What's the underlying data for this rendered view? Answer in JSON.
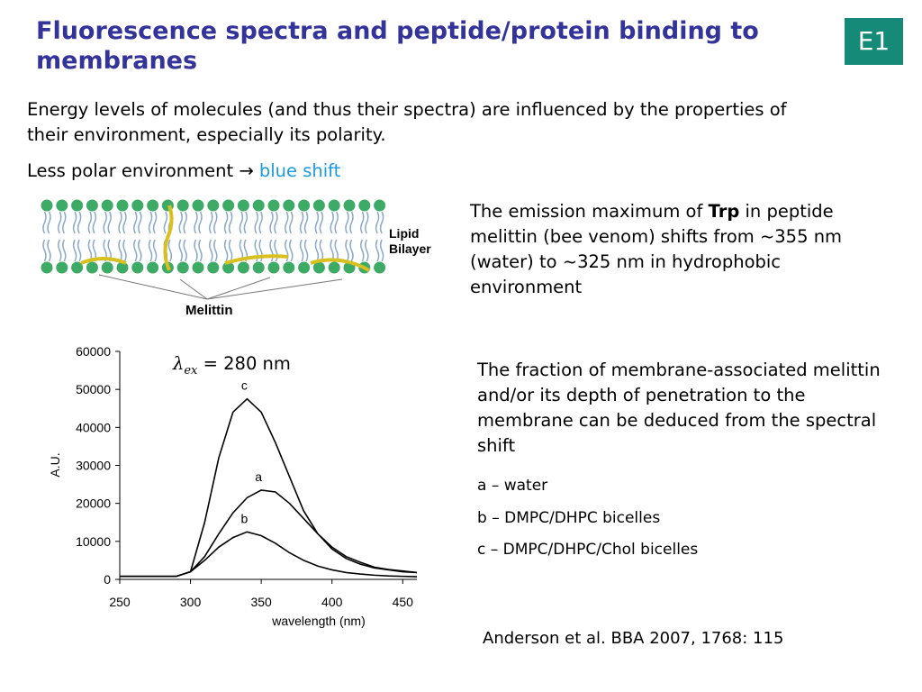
{
  "header": {
    "title": "Fluorescence spectra and peptide/protein binding to membranes",
    "badge": "E1"
  },
  "intro": {
    "paragraph": "Energy levels of molecules (and thus their spectra) are influenced by the properties of their environment, especially its polarity.",
    "shift": {
      "text": "Less polar environment",
      "arrow": "→",
      "highlight": "blue shift"
    }
  },
  "figure": {
    "bilayer_label": "Lipid Bilayer",
    "peptide_label": "Melittin"
  },
  "notes": {
    "emission": {
      "before": "The emission maximum of ",
      "bold": "Trp",
      "after": " in peptide melittin (bee venom) shifts from ~355 nm (water) to ~325 nm in hydrophobic environment"
    },
    "fraction": "The fraction of membrane-associated melittin and/or its depth of penetration to the membrane can be deduced from the spectral shift",
    "legend": [
      "a – water",
      "b – DMPC/DHPC bicelles",
      "c – DMPC/DHPC/Chol bicelles"
    ],
    "citation": "Anderson et al. BBA 2007, 1768: 115"
  },
  "chart_data": {
    "type": "line",
    "xlabel": "wavelength (nm)",
    "ylabel": "A.U.",
    "annotation": {
      "symbol": "λ",
      "subscript": "ex",
      "text": " = 280 nm"
    },
    "x": [
      250,
      260,
      270,
      280,
      290,
      300,
      310,
      320,
      330,
      340,
      350,
      360,
      370,
      380,
      390,
      400,
      410,
      420,
      430,
      440,
      450,
      460
    ],
    "series": [
      {
        "name": "a",
        "color": "#000000",
        "values": [
          800,
          800,
          800,
          800,
          800,
          2000,
          6000,
          12000,
          17500,
          21500,
          23500,
          23000,
          20000,
          16000,
          12000,
          8500,
          6000,
          4500,
          3200,
          2600,
          2200,
          1800
        ]
      },
      {
        "name": "b",
        "color": "#000000",
        "values": [
          800,
          800,
          800,
          800,
          800,
          2000,
          5000,
          8500,
          11000,
          12500,
          11500,
          9500,
          7000,
          5000,
          3500,
          2500,
          1800,
          1400,
          1100,
          900,
          800,
          700
        ]
      },
      {
        "name": "c",
        "color": "#000000",
        "values": [
          800,
          800,
          800,
          800,
          800,
          2000,
          15000,
          32000,
          44000,
          47500,
          44000,
          36000,
          27000,
          18000,
          12000,
          8000,
          5500,
          4000,
          3000,
          2500,
          2000,
          1800
        ]
      }
    ],
    "xlim": [
      250,
      460
    ],
    "ylim": [
      0,
      60000
    ],
    "xticks": [
      250,
      300,
      350,
      400,
      450
    ],
    "yticks": [
      0,
      10000,
      20000,
      30000,
      40000,
      50000,
      60000
    ]
  }
}
